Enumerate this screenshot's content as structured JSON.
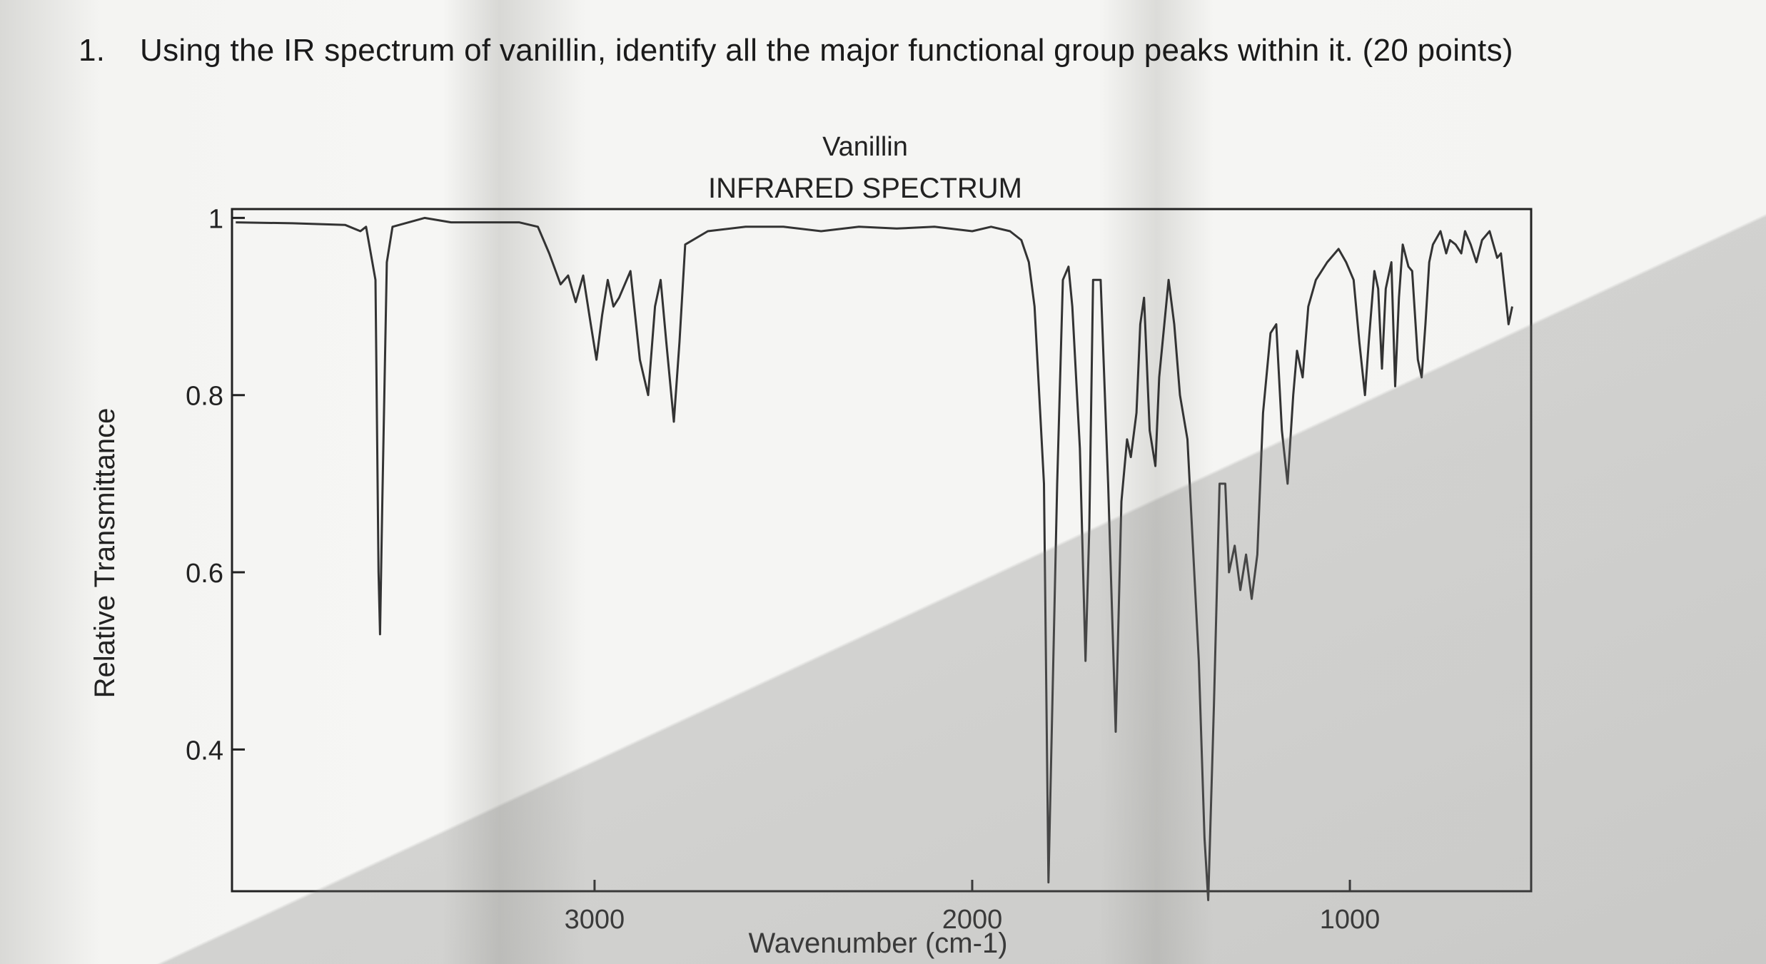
{
  "question": {
    "number": "1.",
    "text": "Using the IR spectrum of vanillin, identify all the major functional group peaks within it. (20 points)"
  },
  "chart_data": {
    "type": "line",
    "title": "Vanillin",
    "subtitle": "INFRARED SPECTRUM",
    "xlabel": "Wavenumber (cm-1)",
    "ylabel": "Relative Transmittance",
    "x_reversed": true,
    "xlim": [
      3960,
      520
    ],
    "ylim": [
      0.24,
      1.01
    ],
    "x_ticks": [
      3000,
      2000,
      1000
    ],
    "y_ticks": [
      {
        "value": 1,
        "label": "1"
      },
      {
        "value": 0.8,
        "label": "0.8"
      },
      {
        "value": 0.6,
        "label": "0.6"
      },
      {
        "value": 0.4,
        "label": "0.4"
      }
    ],
    "grid": false,
    "series": [
      {
        "points": [
          [
            3950,
            0.995
          ],
          [
            3800,
            0.994
          ],
          [
            3660,
            0.992
          ],
          [
            3620,
            0.985
          ],
          [
            3605,
            0.99
          ],
          [
            3580,
            0.93
          ],
          [
            3572,
            0.6
          ],
          [
            3568,
            0.53
          ],
          [
            3562,
            0.68
          ],
          [
            3550,
            0.95
          ],
          [
            3535,
            0.99
          ],
          [
            3450,
            1.0
          ],
          [
            3380,
            0.995
          ],
          [
            3300,
            0.995
          ],
          [
            3200,
            0.995
          ],
          [
            3150,
            0.99
          ],
          [
            3120,
            0.96
          ],
          [
            3090,
            0.925
          ],
          [
            3070,
            0.935
          ],
          [
            3050,
            0.905
          ],
          [
            3030,
            0.935
          ],
          [
            3010,
            0.88
          ],
          [
            2995,
            0.84
          ],
          [
            2980,
            0.89
          ],
          [
            2965,
            0.93
          ],
          [
            2950,
            0.9
          ],
          [
            2935,
            0.91
          ],
          [
            2905,
            0.94
          ],
          [
            2880,
            0.84
          ],
          [
            2858,
            0.8
          ],
          [
            2840,
            0.9
          ],
          [
            2825,
            0.93
          ],
          [
            2810,
            0.86
          ],
          [
            2790,
            0.77
          ],
          [
            2775,
            0.86
          ],
          [
            2760,
            0.97
          ],
          [
            2700,
            0.985
          ],
          [
            2600,
            0.99
          ],
          [
            2500,
            0.99
          ],
          [
            2400,
            0.985
          ],
          [
            2300,
            0.99
          ],
          [
            2200,
            0.988
          ],
          [
            2100,
            0.99
          ],
          [
            2000,
            0.985
          ],
          [
            1950,
            0.99
          ],
          [
            1900,
            0.985
          ],
          [
            1870,
            0.975
          ],
          [
            1850,
            0.95
          ],
          [
            1835,
            0.9
          ],
          [
            1810,
            0.7
          ],
          [
            1798,
            0.25
          ],
          [
            1775,
            0.7
          ],
          [
            1760,
            0.93
          ],
          [
            1745,
            0.945
          ],
          [
            1735,
            0.9
          ],
          [
            1715,
            0.74
          ],
          [
            1700,
            0.5
          ],
          [
            1690,
            0.65
          ],
          [
            1680,
            0.93
          ],
          [
            1660,
            0.93
          ],
          [
            1640,
            0.7
          ],
          [
            1620,
            0.42
          ],
          [
            1605,
            0.68
          ],
          [
            1590,
            0.75
          ],
          [
            1580,
            0.73
          ],
          [
            1565,
            0.78
          ],
          [
            1555,
            0.88
          ],
          [
            1545,
            0.91
          ],
          [
            1530,
            0.76
          ],
          [
            1515,
            0.72
          ],
          [
            1505,
            0.82
          ],
          [
            1480,
            0.93
          ],
          [
            1465,
            0.88
          ],
          [
            1450,
            0.8
          ],
          [
            1430,
            0.75
          ],
          [
            1400,
            0.5
          ],
          [
            1385,
            0.3
          ],
          [
            1375,
            0.23
          ],
          [
            1360,
            0.45
          ],
          [
            1345,
            0.7
          ],
          [
            1330,
            0.7
          ],
          [
            1320,
            0.6
          ],
          [
            1305,
            0.63
          ],
          [
            1290,
            0.58
          ],
          [
            1275,
            0.62
          ],
          [
            1260,
            0.57
          ],
          [
            1245,
            0.62
          ],
          [
            1230,
            0.78
          ],
          [
            1210,
            0.87
          ],
          [
            1195,
            0.88
          ],
          [
            1180,
            0.76
          ],
          [
            1165,
            0.7
          ],
          [
            1150,
            0.8
          ],
          [
            1140,
            0.85
          ],
          [
            1125,
            0.82
          ],
          [
            1110,
            0.9
          ],
          [
            1090,
            0.93
          ],
          [
            1060,
            0.95
          ],
          [
            1030,
            0.965
          ],
          [
            1010,
            0.95
          ],
          [
            990,
            0.93
          ],
          [
            975,
            0.86
          ],
          [
            960,
            0.8
          ],
          [
            950,
            0.86
          ],
          [
            935,
            0.94
          ],
          [
            925,
            0.92
          ],
          [
            915,
            0.83
          ],
          [
            905,
            0.92
          ],
          [
            890,
            0.95
          ],
          [
            880,
            0.81
          ],
          [
            870,
            0.91
          ],
          [
            860,
            0.97
          ],
          [
            845,
            0.945
          ],
          [
            835,
            0.94
          ],
          [
            820,
            0.84
          ],
          [
            810,
            0.82
          ],
          [
            800,
            0.88
          ],
          [
            790,
            0.95
          ],
          [
            780,
            0.97
          ],
          [
            760,
            0.985
          ],
          [
            745,
            0.96
          ],
          [
            735,
            0.975
          ],
          [
            720,
            0.97
          ],
          [
            705,
            0.96
          ],
          [
            695,
            0.985
          ],
          [
            680,
            0.97
          ],
          [
            665,
            0.95
          ],
          [
            650,
            0.975
          ],
          [
            630,
            0.985
          ],
          [
            610,
            0.955
          ],
          [
            600,
            0.96
          ],
          [
            590,
            0.92
          ],
          [
            580,
            0.88
          ],
          [
            570,
            0.9
          ]
        ]
      }
    ]
  }
}
